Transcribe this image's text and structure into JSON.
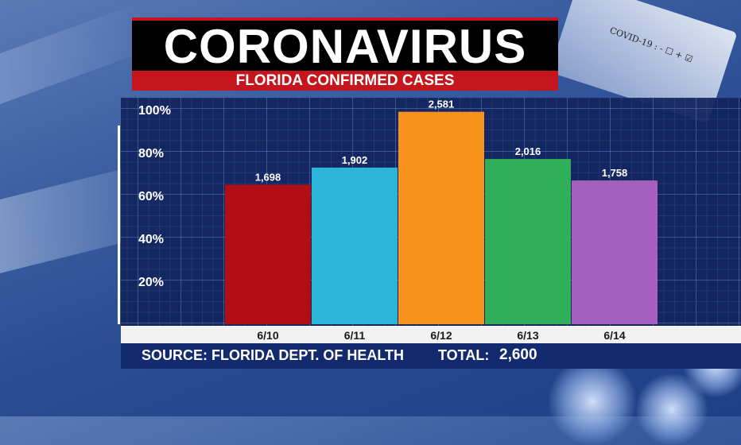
{
  "header": {
    "title": "CORONAVIRUS",
    "subtitle": "FLORIDA CONFIRMED CASES"
  },
  "decor": {
    "tube_text": "COVID-19 : - ☐ + ☑"
  },
  "footer": {
    "source": "SOURCE: FLORIDA DEPT. OF HEALTH",
    "total_label": "TOTAL:",
    "total_value": "2,600"
  },
  "colors": {
    "title_bg": "#000000",
    "accent_red": "#c4161c",
    "panel": "#12245c"
  },
  "chart_data": {
    "type": "bar",
    "title": "FLORIDA CONFIRMED CASES",
    "categories": [
      "6/10",
      "6/11",
      "6/12",
      "6/13",
      "6/14"
    ],
    "values": [
      1698,
      1902,
      2581,
      2016,
      1758
    ],
    "value_labels": [
      "1,698",
      "1,902",
      "2,581",
      "2,016",
      "1,758"
    ],
    "bar_percent": [
      65,
      73,
      99,
      77,
      67
    ],
    "bar_colors": [
      "#b10d12",
      "#2bb5d8",
      "#f7931d",
      "#2faf5a",
      "#a55fbf"
    ],
    "yticks": [
      "20%",
      "40%",
      "60%",
      "80%",
      "100%"
    ],
    "ytick_values": [
      20,
      40,
      60,
      80,
      100
    ],
    "ylim": [
      0,
      100
    ],
    "grid": true
  }
}
